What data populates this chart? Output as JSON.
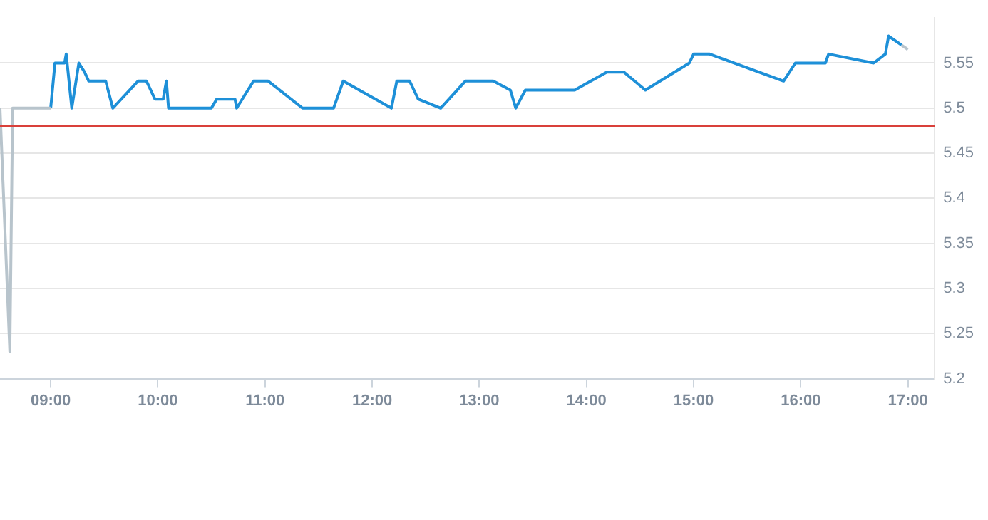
{
  "chart_data": {
    "type": "line",
    "xlim": [
      8.527,
      17.25
    ],
    "ylim": [
      5.2,
      5.6
    ],
    "xticks": [
      {
        "value": 9,
        "label": "09:00"
      },
      {
        "value": 10,
        "label": "10:00"
      },
      {
        "value": 11,
        "label": "11:00"
      },
      {
        "value": 12,
        "label": "12:00"
      },
      {
        "value": 13,
        "label": "13:00"
      },
      {
        "value": 14,
        "label": "14:00"
      },
      {
        "value": 15,
        "label": "15:00"
      },
      {
        "value": 16,
        "label": "16:00"
      },
      {
        "value": 17,
        "label": "17:00"
      }
    ],
    "yticks": [
      5.2,
      5.25,
      5.3,
      5.35,
      5.4,
      5.45,
      {
        "value": 5.5,
        "label": "5.5"
      },
      5.55
    ],
    "grid": "y",
    "legend": false,
    "ref_lines": [
      {
        "axis": "y",
        "value": 5.48,
        "color": "#d9403a"
      }
    ],
    "series": [
      {
        "color": "#b8c4cc",
        "x": [
          8.527,
          8.619,
          8.645,
          9.0
        ],
        "values": [
          5.5,
          5.23,
          5.5,
          5.5
        ]
      },
      {
        "color": "#1e90d8",
        "x": [
          9.0,
          9.04,
          9.13,
          9.145,
          9.197,
          9.263,
          9.316,
          9.355,
          9.513,
          9.58,
          9.815,
          9.894,
          9.973,
          10.05,
          10.08,
          10.1,
          10.5,
          10.55,
          10.72,
          10.736,
          10.893,
          11.03,
          11.35,
          11.64,
          11.73,
          12.18,
          12.23,
          12.35,
          12.43,
          12.64,
          12.87,
          13.13,
          13.29,
          13.34,
          13.43,
          13.89,
          14.19,
          14.35,
          14.55,
          14.96,
          15.0,
          15.15,
          15.84,
          15.95,
          16.23,
          16.26,
          16.68,
          16.79,
          16.82,
          16.94
        ],
        "values": [
          5.5,
          5.55,
          5.55,
          5.56,
          5.5,
          5.55,
          5.54,
          5.53,
          5.53,
          5.5,
          5.53,
          5.53,
          5.51,
          5.51,
          5.53,
          5.5,
          5.5,
          5.51,
          5.51,
          5.5,
          5.53,
          5.53,
          5.5,
          5.5,
          5.53,
          5.5,
          5.53,
          5.53,
          5.51,
          5.5,
          5.53,
          5.53,
          5.52,
          5.5,
          5.52,
          5.52,
          5.54,
          5.54,
          5.52,
          5.55,
          5.56,
          5.56,
          5.53,
          5.55,
          5.55,
          5.56,
          5.55,
          5.56,
          5.58,
          5.57
        ]
      },
      {
        "color": "#b8c4cc",
        "x": [
          16.94,
          17.0
        ],
        "values": [
          5.57,
          5.565
        ]
      }
    ]
  }
}
